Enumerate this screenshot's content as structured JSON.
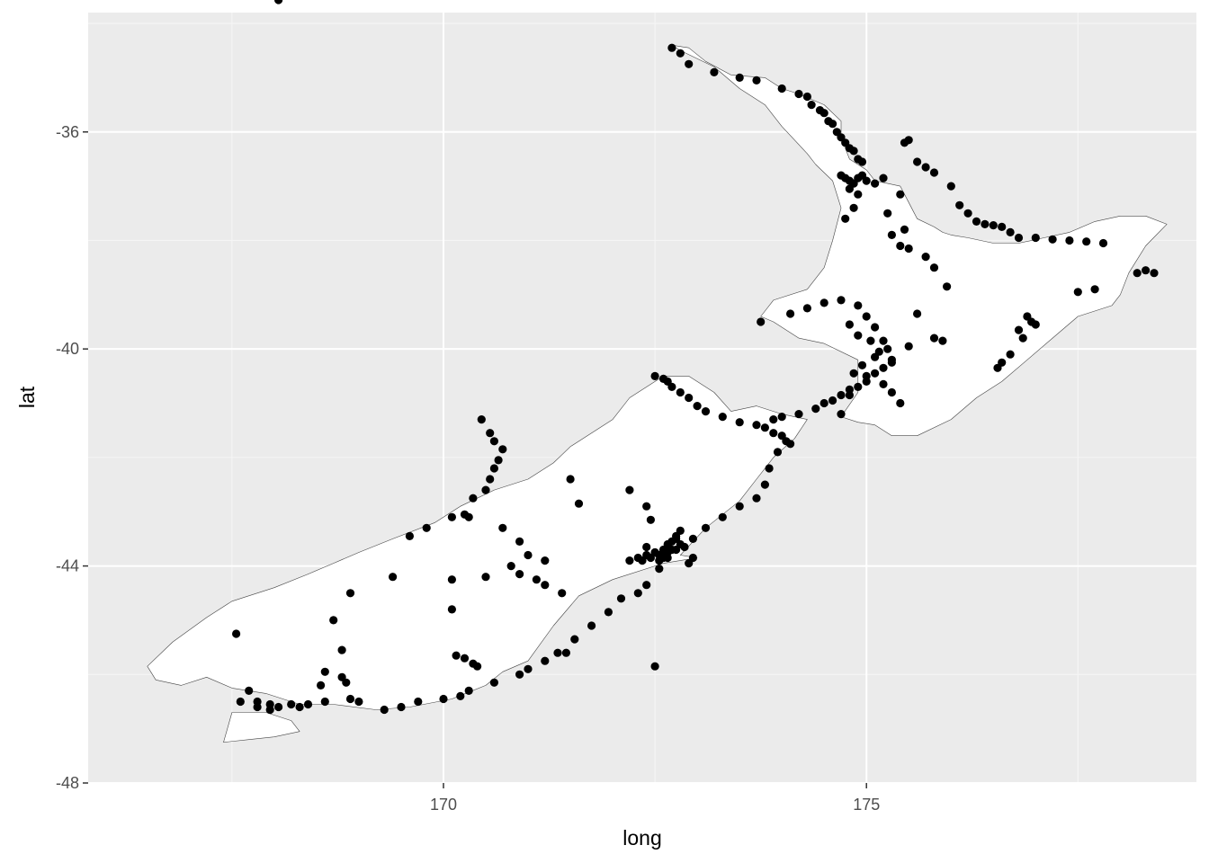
{
  "chart_data": {
    "type": "scatter",
    "title": "",
    "xlabel": "long",
    "ylabel": "lat",
    "xlim": [
      165.8,
      178.9
    ],
    "ylim": [
      -48.0,
      -33.8
    ],
    "x_ticks": [
      {
        "value": 170,
        "label": "170"
      },
      {
        "value": 175,
        "label": "175"
      }
    ],
    "y_ticks": [
      {
        "value": -36,
        "label": "-36"
      },
      {
        "value": -40,
        "label": "-40"
      },
      {
        "value": -44,
        "label": "-44"
      },
      {
        "value": -48,
        "label": "-48"
      }
    ],
    "grid": true,
    "colors": {
      "panel_background": "#ebebeb",
      "grid_major": "#ffffff",
      "grid_minor": "#f5f5f5",
      "land_fill": "#ffffff",
      "land_outline": "#444444",
      "point": "#000000"
    },
    "land": [
      {
        "name": "North Island",
        "lon": [
          172.7,
          172.9,
          173.1,
          173.4,
          173.8,
          174.0,
          174.2,
          174.5,
          174.7,
          174.7,
          174.8,
          175.0,
          175.1,
          175.4,
          175.5,
          175.6,
          175.8,
          175.9,
          176.0,
          176.2,
          176.5,
          176.8,
          177.1,
          177.4,
          177.7,
          178.0,
          178.3,
          178.55,
          178.3,
          178.1,
          178.0,
          177.9,
          177.5,
          177.2,
          176.9,
          176.6,
          176.3,
          176.0,
          175.6,
          175.3,
          175.1,
          174.9,
          174.7,
          174.9,
          174.9,
          174.5,
          174.2,
          173.9,
          173.75,
          173.9,
          174.3,
          174.5,
          174.6,
          174.7,
          174.6,
          174.4,
          174.3,
          174.0,
          173.8,
          173.5,
          173.2,
          172.8,
          172.7
        ],
        "lat": [
          -34.4,
          -34.45,
          -34.7,
          -34.95,
          -35.0,
          -35.2,
          -35.3,
          -35.5,
          -35.8,
          -36.1,
          -36.5,
          -36.7,
          -36.9,
          -37.0,
          -37.3,
          -37.6,
          -37.75,
          -37.85,
          -37.9,
          -37.95,
          -38.05,
          -38.05,
          -37.95,
          -37.85,
          -37.65,
          -37.55,
          -37.55,
          -37.7,
          -38.1,
          -38.6,
          -39.0,
          -39.2,
          -39.4,
          -39.8,
          -40.2,
          -40.6,
          -40.9,
          -41.3,
          -41.6,
          -41.6,
          -41.4,
          -41.35,
          -41.25,
          -40.8,
          -40.2,
          -39.9,
          -39.8,
          -39.5,
          -39.4,
          -39.1,
          -38.9,
          -38.5,
          -38.0,
          -37.4,
          -36.9,
          -36.6,
          -36.4,
          -35.9,
          -35.5,
          -35.2,
          -34.8,
          -34.5,
          -34.4
        ]
      },
      {
        "name": "South Island",
        "lon": [
          172.6,
          172.9,
          173.2,
          173.4,
          173.7,
          174.0,
          174.3,
          174.15,
          173.9,
          173.7,
          173.5,
          173.1,
          172.8,
          173.0,
          172.6,
          172.5,
          172.0,
          171.6,
          171.3,
          171.0,
          170.7,
          170.5,
          170.1,
          169.6,
          169.2,
          168.7,
          168.3,
          167.9,
          167.5,
          167.2,
          166.9,
          166.6,
          166.5,
          166.8,
          167.2,
          167.5,
          168.0,
          168.4,
          168.7,
          169.0,
          169.4,
          169.9,
          170.2,
          170.6,
          171.0,
          171.3,
          171.5,
          172.0,
          172.2,
          172.5,
          172.6
        ],
        "lat": [
          -40.5,
          -40.5,
          -40.8,
          -41.15,
          -41.05,
          -41.2,
          -41.3,
          -41.65,
          -42.0,
          -42.4,
          -42.8,
          -43.3,
          -43.8,
          -43.85,
          -43.95,
          -44.0,
          -44.25,
          -44.55,
          -45.1,
          -45.75,
          -45.95,
          -46.2,
          -46.45,
          -46.6,
          -46.65,
          -46.55,
          -46.55,
          -46.35,
          -46.25,
          -46.05,
          -46.2,
          -46.1,
          -45.85,
          -45.4,
          -44.95,
          -44.65,
          -44.4,
          -44.15,
          -43.95,
          -43.75,
          -43.5,
          -43.2,
          -42.9,
          -42.6,
          -42.4,
          -42.1,
          -41.8,
          -41.3,
          -40.9,
          -40.6,
          -40.5
        ]
      },
      {
        "name": "Stewart Island",
        "lon": [
          167.5,
          167.9,
          168.2,
          168.3,
          168.0,
          167.7,
          167.4,
          167.5
        ],
        "lat": [
          -46.7,
          -46.7,
          -46.85,
          -47.05,
          -47.15,
          -47.2,
          -47.25,
          -46.7
        ]
      }
    ],
    "points": {
      "lon": [
        172.7,
        172.8,
        172.9,
        173.2,
        173.5,
        173.7,
        174.0,
        174.2,
        174.3,
        174.35,
        174.45,
        174.5,
        174.55,
        174.6,
        174.65,
        174.7,
        174.75,
        174.8,
        174.85,
        174.9,
        174.95,
        174.7,
        174.75,
        174.8,
        174.85,
        174.9,
        174.95,
        175.0,
        175.1,
        175.2,
        174.8,
        174.9,
        174.85,
        174.75,
        175.25,
        175.4,
        175.45,
        175.5,
        175.6,
        175.7,
        175.8,
        176.0,
        176.1,
        176.2,
        176.3,
        176.4,
        176.5,
        176.6,
        176.7,
        176.8,
        177.0,
        177.2,
        177.4,
        177.6,
        177.8,
        178.2,
        178.3,
        178.4,
        177.5,
        177.7,
        176.9,
        176.95,
        177.0,
        176.8,
        176.85,
        176.7,
        176.6,
        176.55,
        175.9,
        175.8,
        175.5,
        175.3,
        175.0,
        174.7,
        174.8,
        174.6,
        174.5,
        174.4,
        174.2,
        174.0,
        173.9,
        173.75,
        174.1,
        174.3,
        174.5,
        174.7,
        174.9,
        175.0,
        175.1,
        175.2,
        175.25,
        175.3,
        175.2,
        175.1,
        175.0,
        174.9,
        174.8,
        175.4,
        175.5,
        175.7,
        175.8,
        175.95,
        175.45,
        175.3,
        175.6,
        174.8,
        174.9,
        175.05,
        175.15,
        175.1,
        174.95,
        174.85,
        175.2,
        175.3,
        175.4,
        174.7,
        172.5,
        172.6,
        172.65,
        172.7,
        172.8,
        172.9,
        173.0,
        173.1,
        173.3,
        173.5,
        173.7,
        173.8,
        173.9,
        174.0,
        174.05,
        174.1,
        173.95,
        173.85,
        173.8,
        173.7,
        173.5,
        173.3,
        173.1,
        172.95,
        172.8,
        172.6,
        172.5,
        172.4,
        172.3,
        172.2,
        172.35,
        172.45,
        172.55,
        172.65,
        172.75,
        172.85,
        172.7,
        172.75,
        172.8,
        172.6,
        172.65,
        172.55,
        172.65,
        172.75,
        172.4,
        172.5,
        172.6,
        172.9,
        172.95,
        172.7,
        172.55,
        172.4,
        172.3,
        172.1,
        171.95,
        171.75,
        171.55,
        171.35,
        171.2,
        171.0,
        170.9,
        170.6,
        170.3,
        170.2,
        170.0,
        169.7,
        169.5,
        169.3,
        169.0,
        168.9,
        168.6,
        168.4,
        168.3,
        168.2,
        168.05,
        167.95,
        167.8,
        167.6,
        167.55,
        168.7,
        168.8,
        168.9,
        169.4,
        169.6,
        169.8,
        170.1,
        170.25,
        170.35,
        170.5,
        170.55,
        170.6,
        170.65,
        170.7,
        170.6,
        170.55,
        170.45,
        170.3,
        170.7,
        170.9,
        171.0,
        171.1,
        171.2,
        171.4,
        171.45,
        170.15,
        170.25,
        170.35,
        170.4,
        170.5,
        170.1,
        170.1,
        170.8,
        170.9,
        171.2,
        171.5,
        171.6,
        172.2,
        172.4,
        172.45,
        172.5,
        168.6,
        168.8,
        168.85,
        168.55,
        167.7,
        167.8,
        167.95,
        168.05
      ],
      "lat": [
        -34.45,
        -34.55,
        -34.75,
        -34.9,
        -35.0,
        -35.05,
        -35.2,
        -35.3,
        -35.35,
        -35.5,
        -35.6,
        -35.65,
        -35.8,
        -35.85,
        -36.0,
        -36.1,
        -36.2,
        -36.3,
        -36.35,
        -36.5,
        -36.55,
        -36.8,
        -36.85,
        -36.9,
        -36.95,
        -36.85,
        -36.8,
        -36.9,
        -36.95,
        -36.85,
        -37.05,
        -37.15,
        -37.4,
        -37.6,
        -37.5,
        -37.15,
        -36.2,
        -36.15,
        -36.55,
        -36.65,
        -36.75,
        -37.0,
        -37.35,
        -37.5,
        -37.65,
        -37.7,
        -37.72,
        -37.75,
        -37.85,
        -37.95,
        -37.95,
        -37.98,
        -38.0,
        -38.02,
        -38.05,
        -38.6,
        -38.55,
        -38.6,
        -38.95,
        -38.9,
        -39.4,
        -39.5,
        -39.55,
        -39.65,
        -39.8,
        -40.1,
        -40.25,
        -40.35,
        -39.85,
        -39.8,
        -39.95,
        -40.25,
        -40.5,
        -40.85,
        -40.75,
        -40.95,
        -41.0,
        -41.1,
        -41.2,
        -41.25,
        -41.3,
        -39.5,
        -39.35,
        -39.25,
        -39.15,
        -39.1,
        -39.2,
        -39.4,
        -39.6,
        -39.85,
        -40.0,
        -40.2,
        -40.35,
        -40.45,
        -40.6,
        -40.7,
        -40.85,
        -38.1,
        -38.15,
        -38.3,
        -38.5,
        -38.85,
        -37.8,
        -37.9,
        -39.35,
        -39.55,
        -39.75,
        -39.85,
        -40.05,
        -40.15,
        -40.3,
        -40.45,
        -40.65,
        -40.8,
        -41.0,
        -41.2,
        -40.5,
        -40.55,
        -40.6,
        -40.7,
        -40.8,
        -40.9,
        -41.05,
        -41.15,
        -41.25,
        -41.35,
        -41.4,
        -41.45,
        -41.55,
        -41.6,
        -41.7,
        -41.75,
        -41.9,
        -42.2,
        -42.5,
        -42.75,
        -42.9,
        -43.1,
        -43.3,
        -43.5,
        -43.6,
        -43.7,
        -43.75,
        -43.8,
        -43.85,
        -43.9,
        -43.9,
        -43.85,
        -43.8,
        -43.75,
        -43.7,
        -43.65,
        -43.55,
        -43.45,
        -43.35,
        -43.8,
        -43.85,
        -43.9,
        -43.6,
        -43.5,
        -43.65,
        -43.75,
        -43.85,
        -43.95,
        -43.85,
        -43.7,
        -44.05,
        -44.35,
        -44.5,
        -44.6,
        -44.85,
        -45.1,
        -45.35,
        -45.6,
        -45.75,
        -45.9,
        -46.0,
        -46.15,
        -46.3,
        -46.4,
        -46.45,
        -46.5,
        -46.6,
        -46.65,
        -46.5,
        -46.45,
        -46.5,
        -46.55,
        -46.6,
        -46.55,
        -46.6,
        -46.65,
        -46.6,
        -46.5,
        -45.25,
        -45.0,
        -45.55,
        -44.5,
        -44.2,
        -43.45,
        -43.3,
        -43.1,
        -43.05,
        -42.75,
        -42.6,
        -42.4,
        -42.2,
        -42.05,
        -41.85,
        -41.7,
        -41.55,
        -41.3,
        -43.1,
        -43.3,
        -43.55,
        -43.8,
        -44.25,
        -44.35,
        -44.5,
        -45.6,
        -45.65,
        -45.7,
        -45.8,
        -45.85,
        -44.2,
        -44.25,
        -44.8,
        -44.0,
        -44.15,
        -43.9,
        -42.4,
        -42.85,
        -42.6,
        -42.9,
        -43.15,
        -45.85,
        -45.95,
        -46.05,
        -46.15,
        -46.2,
        -46.3,
        -46.5,
        -46.55
      ]
    }
  }
}
